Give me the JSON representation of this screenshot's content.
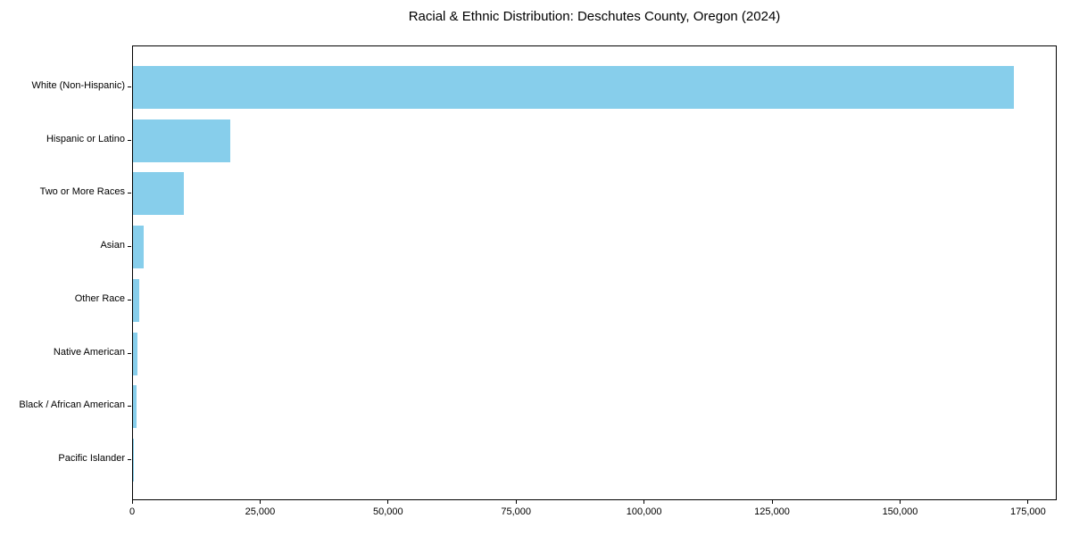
{
  "chart_data": {
    "type": "bar",
    "orientation": "horizontal",
    "title": "Racial & Ethnic Distribution: Deschutes County, Oregon (2024)",
    "categories": [
      "White (Non-Hispanic)",
      "Hispanic or Latino",
      "Two or More Races",
      "Asian",
      "Other Race",
      "Native American",
      "Black / African American",
      "Pacific Islander"
    ],
    "values": [
      172000,
      19000,
      10000,
      2100,
      1300,
      800,
      700,
      200
    ],
    "xlabel": "",
    "ylabel": "",
    "xlim": [
      0,
      180600
    ],
    "xticks": [
      0,
      25000,
      50000,
      75000,
      100000,
      125000,
      150000,
      175000
    ],
    "xtick_labels": [
      "0",
      "25,000",
      "50,000",
      "75,000",
      "100,000",
      "125,000",
      "150,000",
      "175,000"
    ],
    "grid": false,
    "legend": false,
    "bar_color": "#87CEEB",
    "sort_order": "descending"
  }
}
